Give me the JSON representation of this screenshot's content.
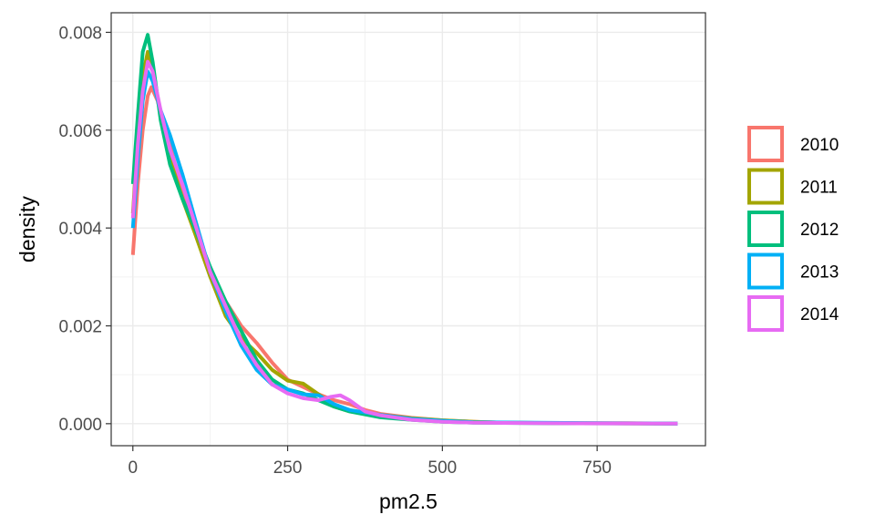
{
  "chart_data": {
    "type": "line",
    "subtype": "density",
    "title": "",
    "xlabel": "pm2.5",
    "ylabel": "density",
    "xlim": [
      -35,
      925
    ],
    "ylim": [
      -0.00045,
      0.0084
    ],
    "x_ticks": [
      0,
      250,
      500,
      750
    ],
    "x_tick_labels": [
      "0",
      "250",
      "500",
      "750"
    ],
    "y_ticks": [
      0.0,
      0.002,
      0.004,
      0.006,
      0.008
    ],
    "y_tick_labels": [
      "0.000",
      "0.002",
      "0.004",
      "0.006",
      "0.008"
    ],
    "grid": true,
    "legend_position": "right",
    "series": [
      {
        "name": "2010",
        "color": "#F8766D",
        "points": [
          [
            0,
            0.00345
          ],
          [
            8,
            0.0049
          ],
          [
            16,
            0.006
          ],
          [
            24,
            0.0067
          ],
          [
            30,
            0.00688
          ],
          [
            40,
            0.0066
          ],
          [
            55,
            0.0059
          ],
          [
            75,
            0.005
          ],
          [
            100,
            0.004
          ],
          [
            125,
            0.00315
          ],
          [
            150,
            0.0025
          ],
          [
            175,
            0.002
          ],
          [
            200,
            0.00165
          ],
          [
            225,
            0.00125
          ],
          [
            250,
            0.0009
          ],
          [
            275,
            0.00075
          ],
          [
            300,
            0.0006
          ],
          [
            325,
            0.00048
          ],
          [
            350,
            0.0004
          ],
          [
            375,
            0.00028
          ],
          [
            400,
            0.0002
          ],
          [
            450,
            0.00012
          ],
          [
            500,
            7e-05
          ],
          [
            550,
            4e-05
          ],
          [
            600,
            2e-05
          ],
          [
            700,
            1e-05
          ],
          [
            800,
            1e-05
          ],
          [
            880,
            0.0
          ]
        ]
      },
      {
        "name": "2011",
        "color": "#A3A500",
        "points": [
          [
            0,
            0.0043
          ],
          [
            8,
            0.0058
          ],
          [
            16,
            0.0071
          ],
          [
            24,
            0.0076
          ],
          [
            32,
            0.0072
          ],
          [
            45,
            0.0063
          ],
          [
            60,
            0.0054
          ],
          [
            80,
            0.0046
          ],
          [
            100,
            0.0039
          ],
          [
            125,
            0.003
          ],
          [
            150,
            0.0022
          ],
          [
            175,
            0.00175
          ],
          [
            200,
            0.00145
          ],
          [
            225,
            0.0011
          ],
          [
            250,
            0.00088
          ],
          [
            275,
            0.00082
          ],
          [
            300,
            0.0006
          ],
          [
            325,
            0.00035
          ],
          [
            350,
            0.00025
          ],
          [
            400,
            0.00018
          ],
          [
            450,
            0.00011
          ],
          [
            500,
            7e-05
          ],
          [
            550,
            4e-05
          ],
          [
            600,
            2e-05
          ],
          [
            700,
            1e-05
          ],
          [
            880,
            0.0
          ]
        ]
      },
      {
        "name": "2012",
        "color": "#00BF7D",
        "points": [
          [
            0,
            0.0049
          ],
          [
            8,
            0.0063
          ],
          [
            16,
            0.0076
          ],
          [
            24,
            0.00795
          ],
          [
            32,
            0.0074
          ],
          [
            45,
            0.0062
          ],
          [
            60,
            0.0053
          ],
          [
            80,
            0.0046
          ],
          [
            100,
            0.004
          ],
          [
            125,
            0.0032
          ],
          [
            150,
            0.0025
          ],
          [
            175,
            0.0019
          ],
          [
            200,
            0.0013
          ],
          [
            225,
            0.0009
          ],
          [
            250,
            0.0007
          ],
          [
            275,
            0.00062
          ],
          [
            300,
            0.00048
          ],
          [
            325,
            0.00035
          ],
          [
            350,
            0.00025
          ],
          [
            400,
            0.00013
          ],
          [
            450,
            8e-05
          ],
          [
            500,
            4e-05
          ],
          [
            550,
            2e-05
          ],
          [
            650,
            1e-05
          ],
          [
            880,
            0.0
          ]
        ]
      },
      {
        "name": "2013",
        "color": "#00B0F6",
        "points": [
          [
            0,
            0.004
          ],
          [
            8,
            0.0054
          ],
          [
            16,
            0.0066
          ],
          [
            24,
            0.0072
          ],
          [
            32,
            0.007
          ],
          [
            45,
            0.0064
          ],
          [
            60,
            0.0059
          ],
          [
            80,
            0.0051
          ],
          [
            100,
            0.0042
          ],
          [
            125,
            0.0031
          ],
          [
            150,
            0.0023
          ],
          [
            175,
            0.0016
          ],
          [
            200,
            0.0011
          ],
          [
            225,
            0.0008
          ],
          [
            250,
            0.0007
          ],
          [
            275,
            0.0006
          ],
          [
            300,
            0.00058
          ],
          [
            325,
            0.0004
          ],
          [
            350,
            0.00028
          ],
          [
            400,
            0.00018
          ],
          [
            450,
            0.0001
          ],
          [
            500,
            6e-05
          ],
          [
            550,
            3e-05
          ],
          [
            650,
            2e-05
          ],
          [
            750,
            1e-05
          ],
          [
            880,
            0.0
          ]
        ]
      },
      {
        "name": "2014",
        "color": "#E76BF3",
        "points": [
          [
            0,
            0.0042
          ],
          [
            8,
            0.0057
          ],
          [
            16,
            0.0068
          ],
          [
            24,
            0.0074
          ],
          [
            32,
            0.0072
          ],
          [
            45,
            0.0064
          ],
          [
            60,
            0.0056
          ],
          [
            80,
            0.0049
          ],
          [
            100,
            0.0041
          ],
          [
            125,
            0.0031
          ],
          [
            150,
            0.0024
          ],
          [
            175,
            0.0017
          ],
          [
            200,
            0.0012
          ],
          [
            225,
            0.0008
          ],
          [
            250,
            0.00062
          ],
          [
            275,
            0.00052
          ],
          [
            300,
            0.00048
          ],
          [
            320,
            0.00055
          ],
          [
            335,
            0.00058
          ],
          [
            350,
            0.00048
          ],
          [
            375,
            0.00025
          ],
          [
            400,
            0.00017
          ],
          [
            450,
            8e-05
          ],
          [
            500,
            4e-05
          ],
          [
            550,
            2e-05
          ],
          [
            650,
            1e-05
          ],
          [
            880,
            0.0
          ]
        ]
      }
    ]
  }
}
